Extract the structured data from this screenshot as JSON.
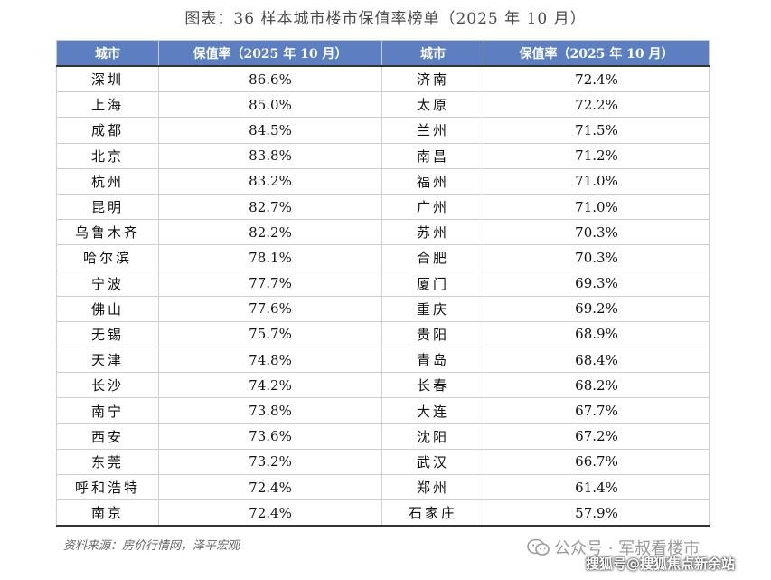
{
  "title": "图表：36 样本城市楼市保值率榜单（2025 年 10 月）",
  "header": {
    "city": "城市",
    "rate": "保值率（2025 年 10 月）",
    "city2": "城市",
    "rate2": "保值率（2025 年 10 月）"
  },
  "rows": [
    {
      "c1": "深圳",
      "r1": "86.6%",
      "c2": "济南",
      "r2": "72.4%"
    },
    {
      "c1": "上海",
      "r1": "85.0%",
      "c2": "太原",
      "r2": "72.2%"
    },
    {
      "c1": "成都",
      "r1": "84.5%",
      "c2": "兰州",
      "r2": "71.5%"
    },
    {
      "c1": "北京",
      "r1": "83.8%",
      "c2": "南昌",
      "r2": "71.2%"
    },
    {
      "c1": "杭州",
      "r1": "83.2%",
      "c2": "福州",
      "r2": "71.0%"
    },
    {
      "c1": "昆明",
      "r1": "82.7%",
      "c2": "广州",
      "r2": "71.0%"
    },
    {
      "c1": "乌鲁木齐",
      "r1": "82.2%",
      "c2": "苏州",
      "r2": "70.3%"
    },
    {
      "c1": "哈尔滨",
      "r1": "78.1%",
      "c2": "合肥",
      "r2": "70.3%"
    },
    {
      "c1": "宁波",
      "r1": "77.7%",
      "c2": "厦门",
      "r2": "69.3%"
    },
    {
      "c1": "佛山",
      "r1": "77.6%",
      "c2": "重庆",
      "r2": "69.2%"
    },
    {
      "c1": "无锡",
      "r1": "75.7%",
      "c2": "贵阳",
      "r2": "68.9%"
    },
    {
      "c1": "天津",
      "r1": "74.8%",
      "c2": "青岛",
      "r2": "68.4%"
    },
    {
      "c1": "长沙",
      "r1": "74.2%",
      "c2": "长春",
      "r2": "68.2%"
    },
    {
      "c1": "南宁",
      "r1": "73.8%",
      "c2": "大连",
      "r2": "67.7%"
    },
    {
      "c1": "西安",
      "r1": "73.6%",
      "c2": "沈阳",
      "r2": "67.2%"
    },
    {
      "c1": "东莞",
      "r1": "73.2%",
      "c2": "武汉",
      "r2": "66.7%"
    },
    {
      "c1": "呼和浩特",
      "r1": "72.4%",
      "c2": "郑州",
      "r2": "61.4%"
    },
    {
      "c1": "南京",
      "r1": "72.4%",
      "c2": "石家庄",
      "r2": "57.9%"
    }
  ],
  "source": "资料来源：房价行情网，泽平宏观",
  "watermark": {
    "wechat": "公众号 · 军叔看楼市",
    "sohu": "搜狐号@搜狐焦点新余站",
    "icon": "wechat-icon"
  }
}
